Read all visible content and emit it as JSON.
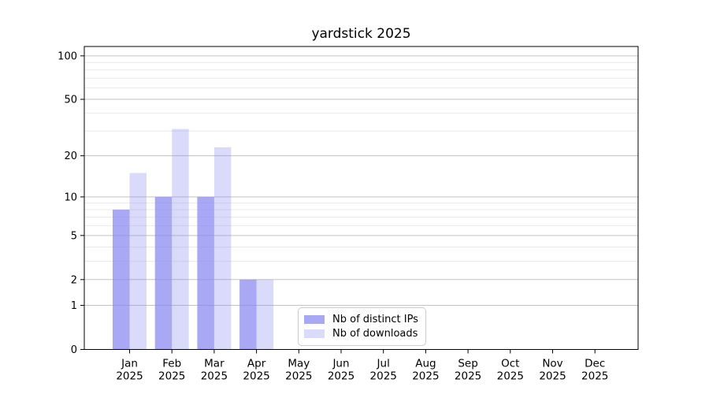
{
  "chart_data": {
    "type": "bar",
    "title": "yardstick 2025",
    "categories": [
      "Jan",
      "Feb",
      "Mar",
      "Apr",
      "May",
      "Jun",
      "Jul",
      "Aug",
      "Sep",
      "Oct",
      "Nov",
      "Dec"
    ],
    "category_year": "2025",
    "series": [
      {
        "name": "Nb of distinct IPs",
        "values": [
          8,
          10,
          10,
          2,
          0,
          0,
          0,
          0,
          0,
          0,
          0,
          0
        ],
        "color": "#8686f1",
        "opacity": 0.72
      },
      {
        "name": "Nb of downloads",
        "values": [
          15,
          31,
          23,
          2,
          0,
          0,
          0,
          0,
          0,
          0,
          0,
          0
        ],
        "color": "#8686f1",
        "opacity": 0.3
      }
    ],
    "xlabel": "",
    "ylabel": "",
    "yscale": "log1p",
    "ylim": [
      0,
      116
    ],
    "yticks": [
      0,
      1,
      2,
      5,
      10,
      20,
      50,
      100
    ],
    "yticks_minor": [
      3,
      4,
      6,
      7,
      8,
      9,
      30,
      40,
      60,
      70,
      80,
      90
    ],
    "grid": "horizontal major+minor",
    "legend_position": "bottom-center",
    "colors": {
      "bar_base": "#8686f1",
      "grid_major": "#c3c3c3",
      "grid_minor": "#e9e9e9",
      "axis": "#000000",
      "text": "#000000",
      "legend_border": "#cccccc",
      "background": "#ffffff"
    }
  }
}
